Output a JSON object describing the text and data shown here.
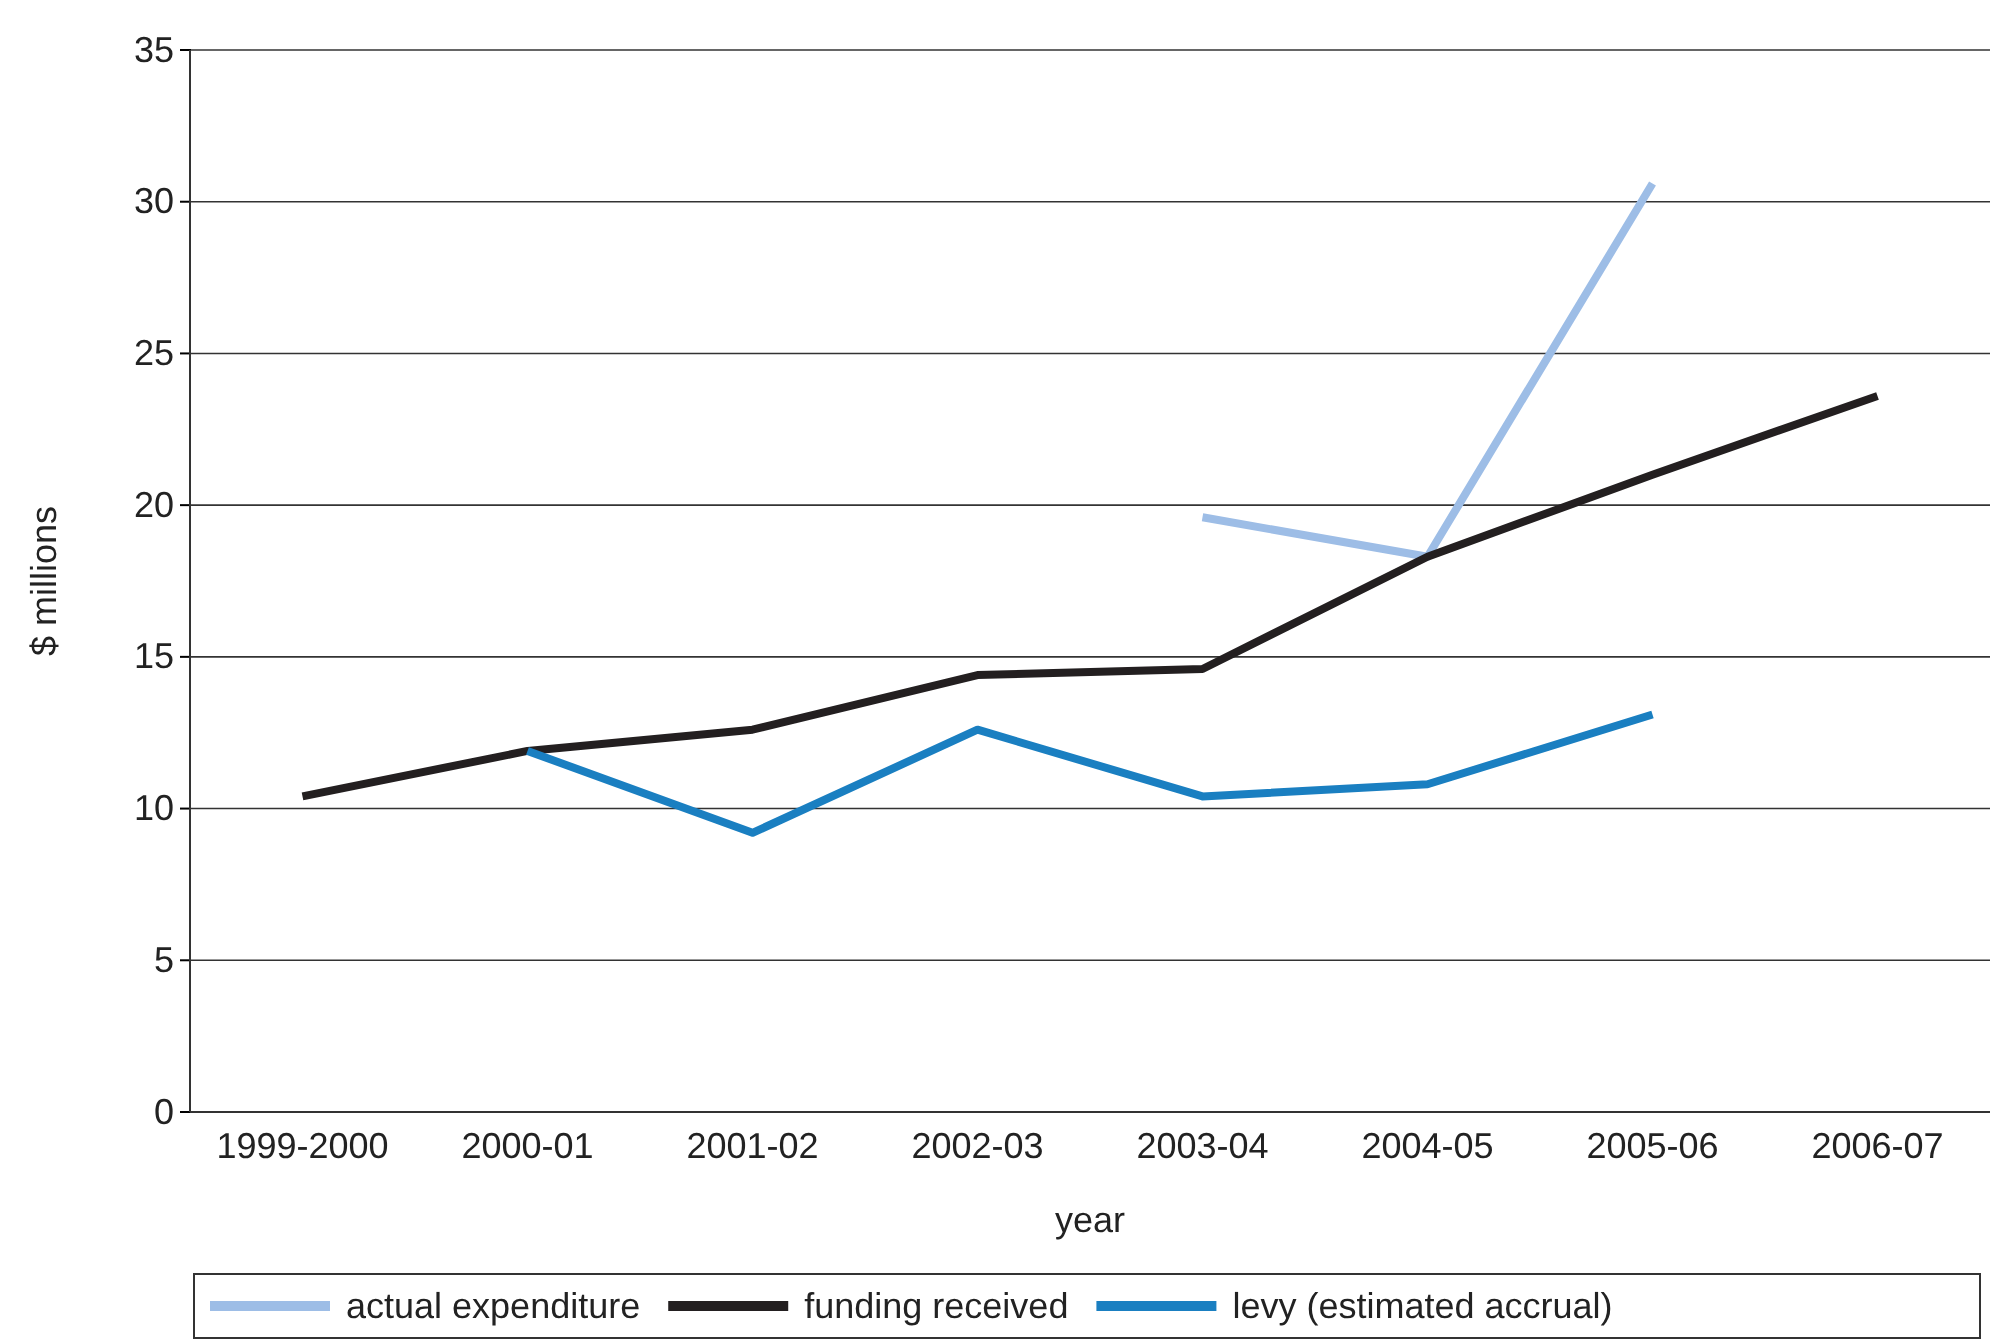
{
  "chart_data": {
    "type": "line",
    "xlabel": "year",
    "ylabel": "$ millions",
    "categories": [
      "1999-2000",
      "2000-01",
      "2001-02",
      "2002-03",
      "2003-04",
      "2004-05",
      "2005-06",
      "2006-07"
    ],
    "series": [
      {
        "name": "actual expenditure",
        "color": "#9dbde6",
        "values": [
          null,
          null,
          null,
          null,
          19.6,
          18.3,
          30.6,
          null
        ]
      },
      {
        "name": "funding received",
        "color": "#231f20",
        "values": [
          10.4,
          11.9,
          12.6,
          14.4,
          14.6,
          18.3,
          21.0,
          23.6
        ]
      },
      {
        "name": "levy (estimated accrual)",
        "color": "#1a7fc1",
        "values": [
          null,
          11.9,
          9.2,
          12.6,
          10.4,
          10.8,
          13.1,
          null
        ]
      }
    ],
    "ylim": [
      0,
      35
    ],
    "yticks": [
      0,
      5,
      10,
      15,
      20,
      25,
      30,
      35
    ],
    "grid": "y",
    "legend": "bottom",
    "marker": "none",
    "line_style": "solid"
  }
}
